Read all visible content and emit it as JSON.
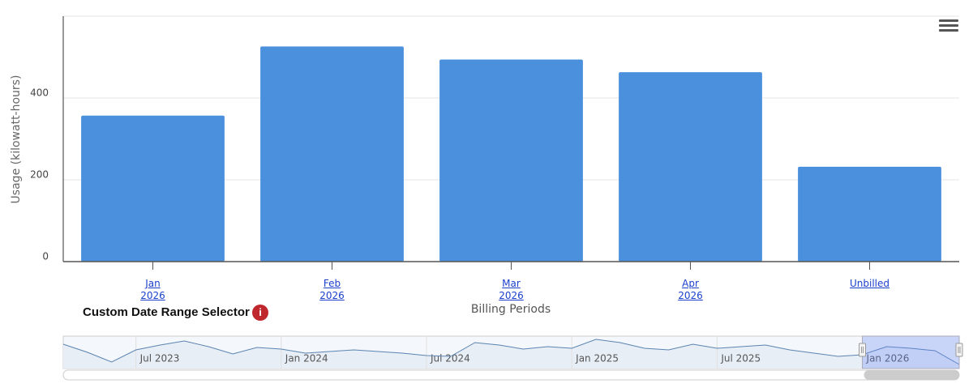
{
  "chart_data": [
    {
      "type": "bar",
      "y_axis_title": "Usage (kilowatt-hours)",
      "x_axis_title": "Billing Periods",
      "categories": [
        "Jan 2026",
        "Feb 2026",
        "Mar 2026",
        "Apr 2026",
        "Unbilled"
      ],
      "values": [
        357,
        526,
        494,
        463,
        232
      ],
      "color": "#4a90dd",
      "ylim": [
        0,
        600
      ],
      "yticks": [
        0,
        200,
        400
      ],
      "grid": true
    },
    {
      "type": "line",
      "title": "Custom Date Range Selector",
      "x": [
        "2023-04",
        "2023-05",
        "2023-06",
        "2023-07",
        "2023-08",
        "2023-09",
        "2023-10",
        "2023-11",
        "2023-12",
        "2024-01",
        "2024-02",
        "2024-03",
        "2024-04",
        "2024-05",
        "2024-06",
        "2024-07",
        "2024-08",
        "2024-09",
        "2024-10",
        "2024-11",
        "2024-12",
        "2025-01",
        "2025-02",
        "2025-03",
        "2025-04",
        "2025-05",
        "2025-06",
        "2025-07",
        "2025-08",
        "2025-09",
        "2025-10",
        "2025-11",
        "2025-12",
        "2026-01",
        "2026-02",
        "2026-03",
        "2026-04",
        "2026-05"
      ],
      "values": [
        450,
        300,
        120,
        345,
        435,
        510,
        405,
        270,
        390,
        360,
        285,
        315,
        345,
        315,
        285,
        240,
        225,
        480,
        435,
        360,
        405,
        375,
        540,
        480,
        375,
        345,
        450,
        375,
        405,
        435,
        345,
        285,
        225,
        255,
        405,
        375,
        330,
        75
      ],
      "color": "#5b84b1",
      "ylim": [
        0,
        600
      ],
      "xticks": [
        {
          "value": "2023-07",
          "label": "Jul 2023"
        },
        {
          "value": "2024-01",
          "label": "Jan 2024"
        },
        {
          "value": "2024-07",
          "label": "Jul 2024"
        },
        {
          "value": "2025-01",
          "label": "Jan 2025"
        },
        {
          "value": "2025-07",
          "label": "Jul 2025"
        },
        {
          "value": "2026-01",
          "label": "Jan 2026"
        }
      ],
      "selected_range": [
        "2026-01",
        "2026-05"
      ]
    }
  ]
}
